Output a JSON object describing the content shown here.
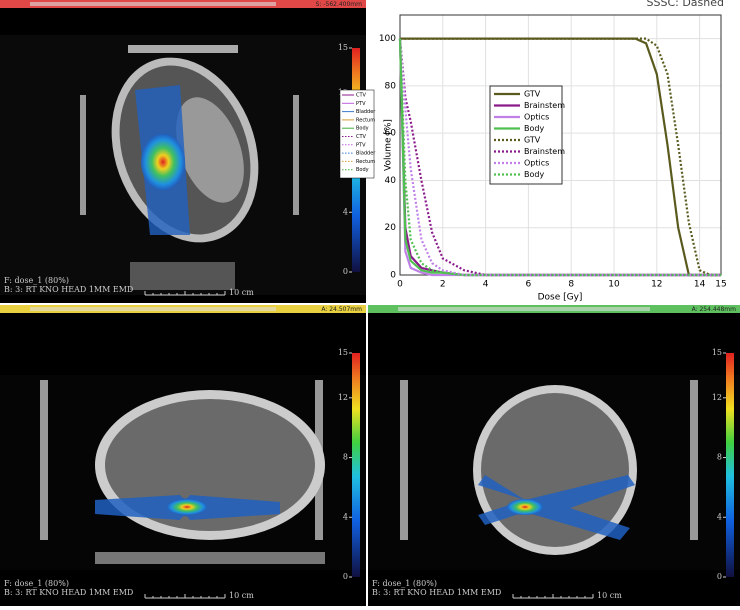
{
  "corner_note": "SSSC: Dashed",
  "panels": [
    {
      "position_label": "S: -562.400mm",
      "footer": [
        "F: dose_1 (80%)",
        "B: 3: RT KNO HEAD 1MM  EMD"
      ],
      "scale": "10 cm",
      "bar_color": "#e04848"
    },
    {
      "position_label": "A: 24.507mm",
      "footer": [
        "F: dose_1 (80%)",
        "B: 3: RT KNO HEAD 1MM  EMD"
      ],
      "scale": "10 cm",
      "bar_color": "#e8d040"
    },
    {
      "position_label": "A: 254.448mm",
      "footer": [
        "F: dose_1 (80%)",
        "B: 3: RT KNO HEAD 1MM  EMD"
      ],
      "scale": "10 cm",
      "bar_color": "#5ec05e"
    }
  ],
  "colorbar_lim": [
    0,
    15
  ],
  "colorbar_ticks": [
    0,
    4,
    8,
    12,
    15
  ],
  "structure_legend": [
    {
      "name": "CTV",
      "color": "#8b1a8b",
      "dash": false
    },
    {
      "name": "PTV",
      "color": "#c060e0",
      "dash": false
    },
    {
      "name": "Bladder",
      "color": "#3a7ad0",
      "dash": false
    },
    {
      "name": "Rectum",
      "color": "#d0a030",
      "dash": false
    },
    {
      "name": "Body",
      "color": "#40b040",
      "dash": false
    },
    {
      "name": "CTV",
      "color": "#8b1a8b",
      "dash": true
    },
    {
      "name": "PTV",
      "color": "#c060e0",
      "dash": true
    },
    {
      "name": "Bladder",
      "color": "#3a7ad0",
      "dash": true
    },
    {
      "name": "Rectum",
      "color": "#d0a030",
      "dash": true
    },
    {
      "name": "Body",
      "color": "#40b040",
      "dash": true
    }
  ],
  "chart_data": {
    "type": "line",
    "x_label": "Dose [Gy]",
    "y_label": "Volume [%]",
    "x": [
      0,
      0.25,
      0.5,
      1,
      1.5,
      2,
      3,
      4,
      6,
      8,
      10,
      11,
      11.5,
      12,
      12.5,
      13,
      13.5,
      14,
      14.5,
      15
    ],
    "xlim": [
      0,
      15
    ],
    "xticks": [
      0,
      2,
      4,
      6,
      8,
      10,
      12,
      14,
      15
    ],
    "ylim": [
      0,
      110
    ],
    "yticks": [
      0,
      20,
      40,
      60,
      80,
      100
    ],
    "grid": true,
    "series": [
      {
        "name": "GTV",
        "color": "#5a5a1e",
        "dash": false,
        "values": [
          100,
          100,
          100,
          100,
          100,
          100,
          100,
          100,
          100,
          100,
          100,
          100,
          98,
          85,
          55,
          20,
          0,
          0,
          0,
          0
        ]
      },
      {
        "name": "Brainstem",
        "color": "#8b1a8b",
        "dash": false,
        "values": [
          100,
          20,
          8,
          3,
          2,
          1,
          0,
          0,
          0,
          0,
          0,
          0,
          0,
          0,
          0,
          0,
          0,
          0,
          0,
          0
        ]
      },
      {
        "name": "Optics",
        "color": "#c080e8",
        "dash": false,
        "values": [
          100,
          10,
          3,
          1,
          0,
          0,
          0,
          0,
          0,
          0,
          0,
          0,
          0,
          0,
          0,
          0,
          0,
          0,
          0,
          0
        ]
      },
      {
        "name": "Body",
        "color": "#50c050",
        "dash": false,
        "values": [
          100,
          15,
          6,
          2,
          1,
          1,
          0,
          0,
          0,
          0,
          0,
          0,
          0,
          0,
          0,
          0,
          0,
          0,
          0,
          0
        ]
      },
      {
        "name": "GTV",
        "color": "#5a5a1e",
        "dash": true,
        "values": [
          100,
          100,
          100,
          100,
          100,
          100,
          100,
          100,
          100,
          100,
          100,
          100,
          100,
          97,
          85,
          55,
          22,
          2,
          0,
          0
        ]
      },
      {
        "name": "Brainstem",
        "color": "#8b1a8b",
        "dash": true,
        "values": [
          100,
          75,
          65,
          40,
          18,
          7,
          2,
          0,
          0,
          0,
          0,
          0,
          0,
          0,
          0,
          0,
          0,
          0,
          0,
          0
        ]
      },
      {
        "name": "Optics",
        "color": "#c080e8",
        "dash": true,
        "values": [
          100,
          70,
          45,
          15,
          5,
          2,
          0,
          0,
          0,
          0,
          0,
          0,
          0,
          0,
          0,
          0,
          0,
          0,
          0,
          0
        ]
      },
      {
        "name": "Body",
        "color": "#50c050",
        "dash": true,
        "values": [
          100,
          40,
          15,
          5,
          2,
          1,
          0,
          0,
          0,
          0,
          0,
          0,
          0,
          0,
          0,
          0,
          0,
          0,
          0,
          0
        ]
      }
    ]
  }
}
